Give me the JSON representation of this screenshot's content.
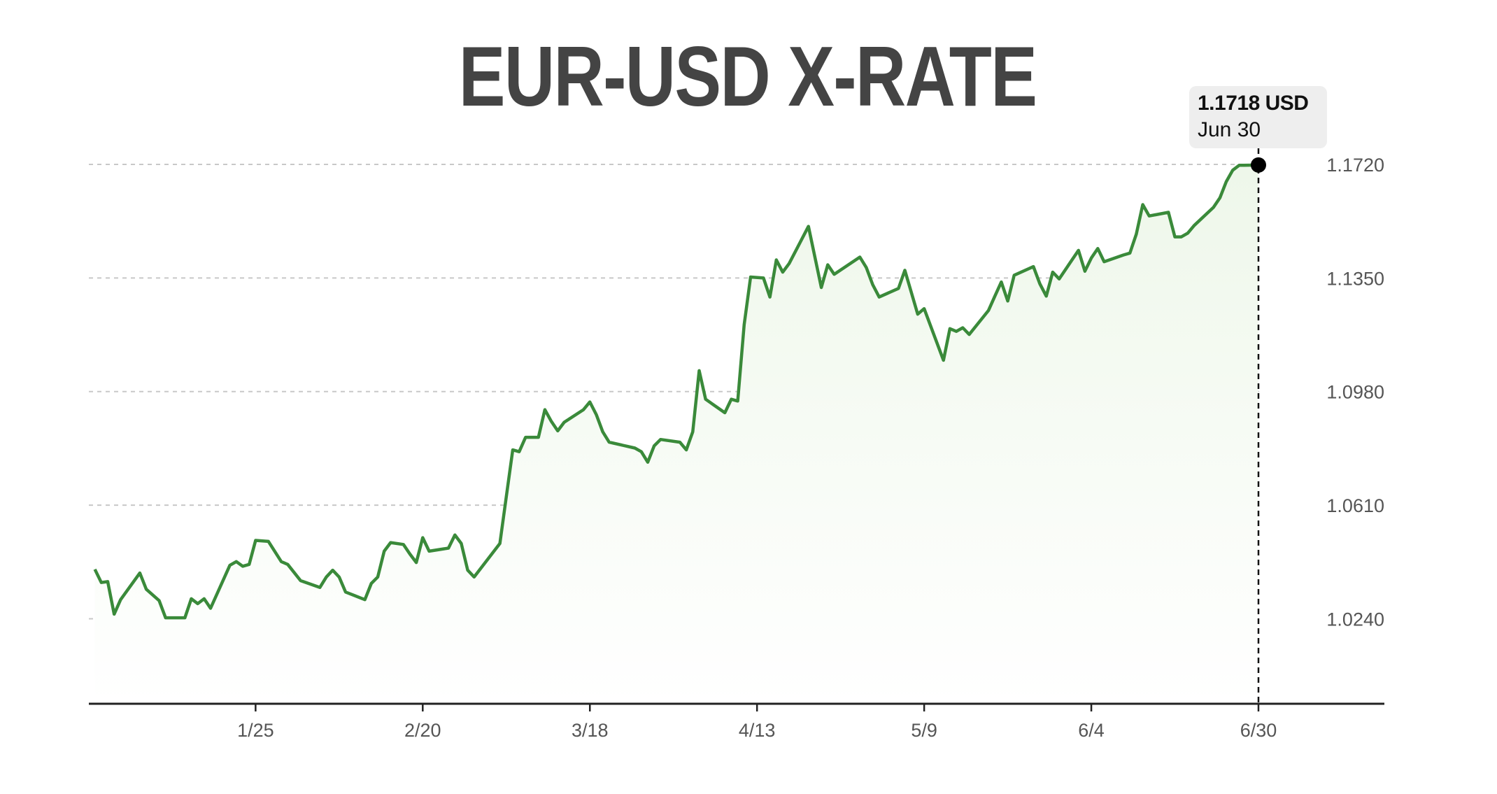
{
  "chart_data": {
    "type": "area",
    "title": "EUR-USD X-RATE",
    "xlabel": "",
    "ylabel": "",
    "x_ticks": [
      "1/25",
      "2/20",
      "3/18",
      "4/13",
      "5/9",
      "6/4",
      "6/30"
    ],
    "y_ticks": [
      "1.0240",
      "1.0610",
      "1.0980",
      "1.1350",
      "1.1720"
    ],
    "ylim": [
      0.9963,
      1.172
    ],
    "grid": "horizontal-dashed",
    "line_color": "#3a8a3a",
    "fill_color": "#eef7ea",
    "points": [
      [
        "12/31",
        1.0401
      ],
      [
        "1/1",
        1.0358
      ],
      [
        "1/2",
        1.0361
      ],
      [
        "1/3",
        1.0255
      ],
      [
        "1/4",
        1.0302
      ],
      [
        "1/7",
        1.0389
      ],
      [
        "1/8",
        1.0336
      ],
      [
        "1/10",
        1.0299
      ],
      [
        "1/11",
        1.0243
      ],
      [
        "1/14",
        1.0243
      ],
      [
        "1/15",
        1.0305
      ],
      [
        "1/16",
        1.0289
      ],
      [
        "1/17",
        1.0305
      ],
      [
        "1/18",
        1.0274
      ],
      [
        "1/21",
        1.0414
      ],
      [
        "1/22",
        1.0426
      ],
      [
        "1/23",
        1.0411
      ],
      [
        "1/24",
        1.0417
      ],
      [
        "1/25",
        1.0495
      ],
      [
        "1/27",
        1.0492
      ],
      [
        "1/29",
        1.0426
      ],
      [
        "1/30",
        1.0417
      ],
      [
        "2/1",
        1.0364
      ],
      [
        "2/4",
        1.0342
      ],
      [
        "2/5",
        1.0376
      ],
      [
        "2/6",
        1.0398
      ],
      [
        "2/7",
        1.0376
      ],
      [
        "2/8",
        1.0327
      ],
      [
        "2/11",
        1.0302
      ],
      [
        "2/12",
        1.0355
      ],
      [
        "2/13",
        1.0376
      ],
      [
        "2/14",
        1.046
      ],
      [
        "2/15",
        1.0488
      ],
      [
        "2/17",
        1.0482
      ],
      [
        "2/18",
        1.0451
      ],
      [
        "2/19",
        1.0423
      ],
      [
        "2/20",
        1.0504
      ],
      [
        "2/21",
        1.046
      ],
      [
        "2/24",
        1.047
      ],
      [
        "2/25",
        1.0513
      ],
      [
        "2/26",
        1.0485
      ],
      [
        "2/27",
        1.0398
      ],
      [
        "2/28",
        1.0376
      ],
      [
        "3/4",
        1.0485
      ],
      [
        "3/5",
        1.0638
      ],
      [
        "3/6",
        1.079
      ],
      [
        "3/7",
        1.0784
      ],
      [
        "3/8",
        1.0831
      ],
      [
        "3/10",
        1.0831
      ],
      [
        "3/11",
        1.0921
      ],
      [
        "3/12",
        1.0883
      ],
      [
        "3/13",
        1.0852
      ],
      [
        "3/14",
        1.088
      ],
      [
        "3/17",
        1.0921
      ],
      [
        "3/18",
        1.0946
      ],
      [
        "3/19",
        1.0905
      ],
      [
        "3/20",
        1.0849
      ],
      [
        "3/21",
        1.0815
      ],
      [
        "3/25",
        1.0796
      ],
      [
        "3/26",
        1.0784
      ],
      [
        "3/27",
        1.075
      ],
      [
        "3/28",
        1.0803
      ],
      [
        "3/29",
        1.0824
      ],
      [
        "4/1",
        1.0815
      ],
      [
        "4/2",
        1.079
      ],
      [
        "4/3",
        1.0849
      ],
      [
        "4/4",
        1.1048
      ],
      [
        "4/5",
        1.0955
      ],
      [
        "4/8",
        1.0911
      ],
      [
        "4/9",
        1.0955
      ],
      [
        "4/10",
        1.0949
      ],
      [
        "4/11",
        1.1198
      ],
      [
        "4/12",
        1.1353
      ],
      [
        "4/14",
        1.135
      ],
      [
        "4/15",
        1.1288
      ],
      [
        "4/16",
        1.1409
      ],
      [
        "4/17",
        1.1369
      ],
      [
        "4/18",
        1.1397
      ],
      [
        "4/21",
        1.1518
      ],
      [
        "4/23",
        1.1319
      ],
      [
        "4/24",
        1.1393
      ],
      [
        "4/25",
        1.1362
      ],
      [
        "4/29",
        1.1418
      ],
      [
        "4/30",
        1.1384
      ],
      [
        "5/1",
        1.1328
      ],
      [
        "5/2",
        1.1288
      ],
      [
        "5/5",
        1.1316
      ],
      [
        "5/6",
        1.1375
      ],
      [
        "5/8",
        1.1232
      ],
      [
        "5/9",
        1.125
      ],
      [
        "5/12",
        1.1082
      ],
      [
        "5/13",
        1.1185
      ],
      [
        "5/14",
        1.1176
      ],
      [
        "5/15",
        1.1188
      ],
      [
        "5/16",
        1.1166
      ],
      [
        "5/19",
        1.1244
      ],
      [
        "5/20",
        1.1291
      ],
      [
        "5/21",
        1.1337
      ],
      [
        "5/22",
        1.1275
      ],
      [
        "5/23",
        1.1359
      ],
      [
        "5/26",
        1.1387
      ],
      [
        "5/27",
        1.1331
      ],
      [
        "5/28",
        1.1291
      ],
      [
        "5/29",
        1.1369
      ],
      [
        "5/30",
        1.1347
      ],
      [
        "6/2",
        1.144
      ],
      [
        "6/3",
        1.1372
      ],
      [
        "6/4",
        1.1415
      ],
      [
        "6/5",
        1.1446
      ],
      [
        "6/6",
        1.1403
      ],
      [
        "6/9",
        1.1425
      ],
      [
        "6/10",
        1.1431
      ],
      [
        "6/11",
        1.1493
      ],
      [
        "6/12",
        1.1589
      ],
      [
        "6/13",
        1.1552
      ],
      [
        "6/16",
        1.1564
      ],
      [
        "6/17",
        1.1484
      ],
      [
        "6/18",
        1.1484
      ],
      [
        "6/19",
        1.1496
      ],
      [
        "6/20",
        1.1521
      ],
      [
        "6/23",
        1.158
      ],
      [
        "6/24",
        1.1611
      ],
      [
        "6/25",
        1.1664
      ],
      [
        "6/26",
        1.1701
      ],
      [
        "6/27",
        1.1717
      ],
      [
        "6/30",
        1.1718
      ]
    ]
  },
  "tooltip": {
    "value": "1.1718 USD",
    "date": "Jun 30"
  }
}
